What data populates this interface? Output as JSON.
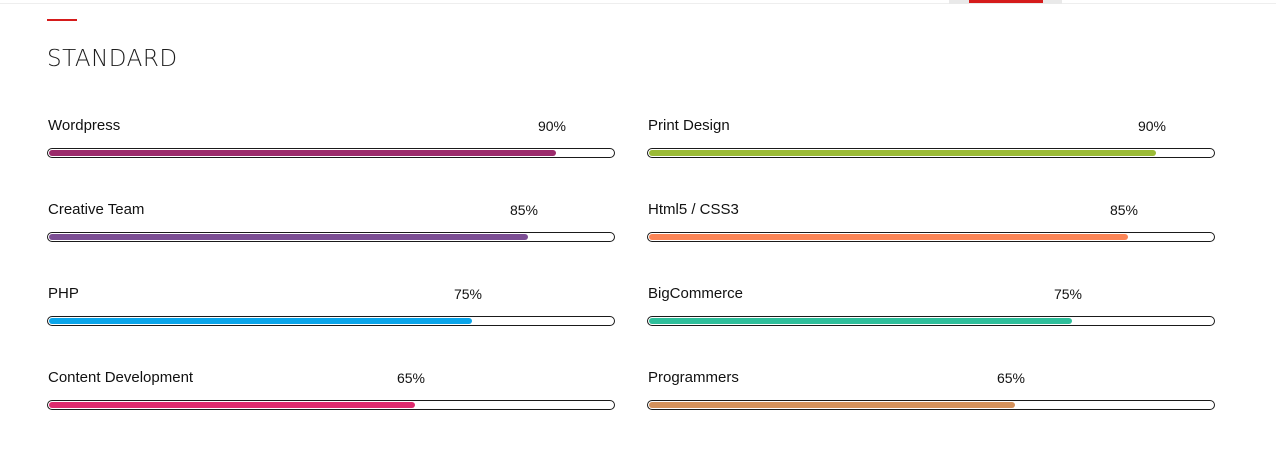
{
  "section": {
    "title": "STANDARD"
  },
  "skills": [
    {
      "name": "Wordpress",
      "percent_label": "90%",
      "value": 90,
      "color": "#9b2a6b"
    },
    {
      "name": "Print Design",
      "percent_label": "90%",
      "value": 90,
      "color": "#9bbb36"
    },
    {
      "name": "Creative Team",
      "percent_label": "85%",
      "value": 85,
      "color": "#7c4e94"
    },
    {
      "name": "Html5 / CSS3",
      "percent_label": "85%",
      "value": 85,
      "color": "#fb8455"
    },
    {
      "name": "PHP",
      "percent_label": "75%",
      "value": 75,
      "color": "#0aa5ea"
    },
    {
      "name": "BigCommerce",
      "percent_label": "75%",
      "value": 75,
      "color": "#2fbf9b"
    },
    {
      "name": "Content Development",
      "percent_label": "65%",
      "value": 65,
      "color": "#de2a6d"
    },
    {
      "name": "Programmers",
      "percent_label": "65%",
      "value": 65,
      "color": "#d4915b"
    }
  ]
}
